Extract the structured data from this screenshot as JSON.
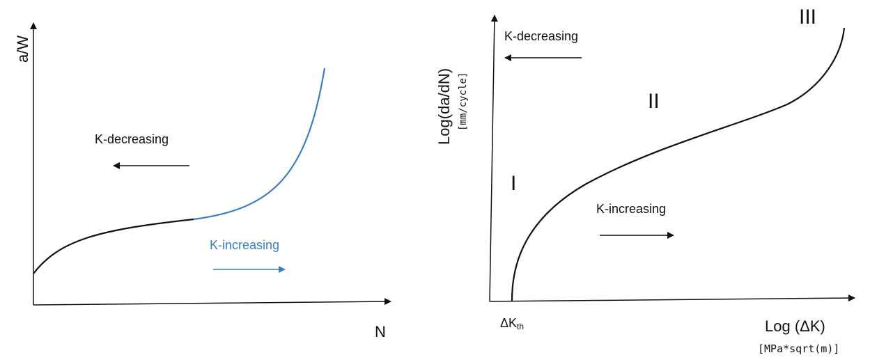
{
  "colors": {
    "axis": "#111111",
    "black_curve": "#111111",
    "blue_curve": "#3b7dc4",
    "arrow_black": "#111111",
    "arrow_blue": "#3b7dc4"
  },
  "left_diagram": {
    "y_axis_label": "a/W",
    "x_axis_label": "N",
    "decreasing_label": "K-decreasing",
    "increasing_label": "K-increasing"
  },
  "right_diagram": {
    "y_axis_label": "Log(da/dN)",
    "y_axis_unit": "[mm/cycle]",
    "x_axis_label": "Log (ΔK)",
    "x_axis_unit": "[MPa*sqrt(m)]",
    "threshold_label_main": "ΔK",
    "threshold_label_sub": "th",
    "region_1": "I",
    "region_2": "II",
    "region_3": "III",
    "decreasing_label": "K-decreasing",
    "increasing_label": "K-increasing"
  }
}
